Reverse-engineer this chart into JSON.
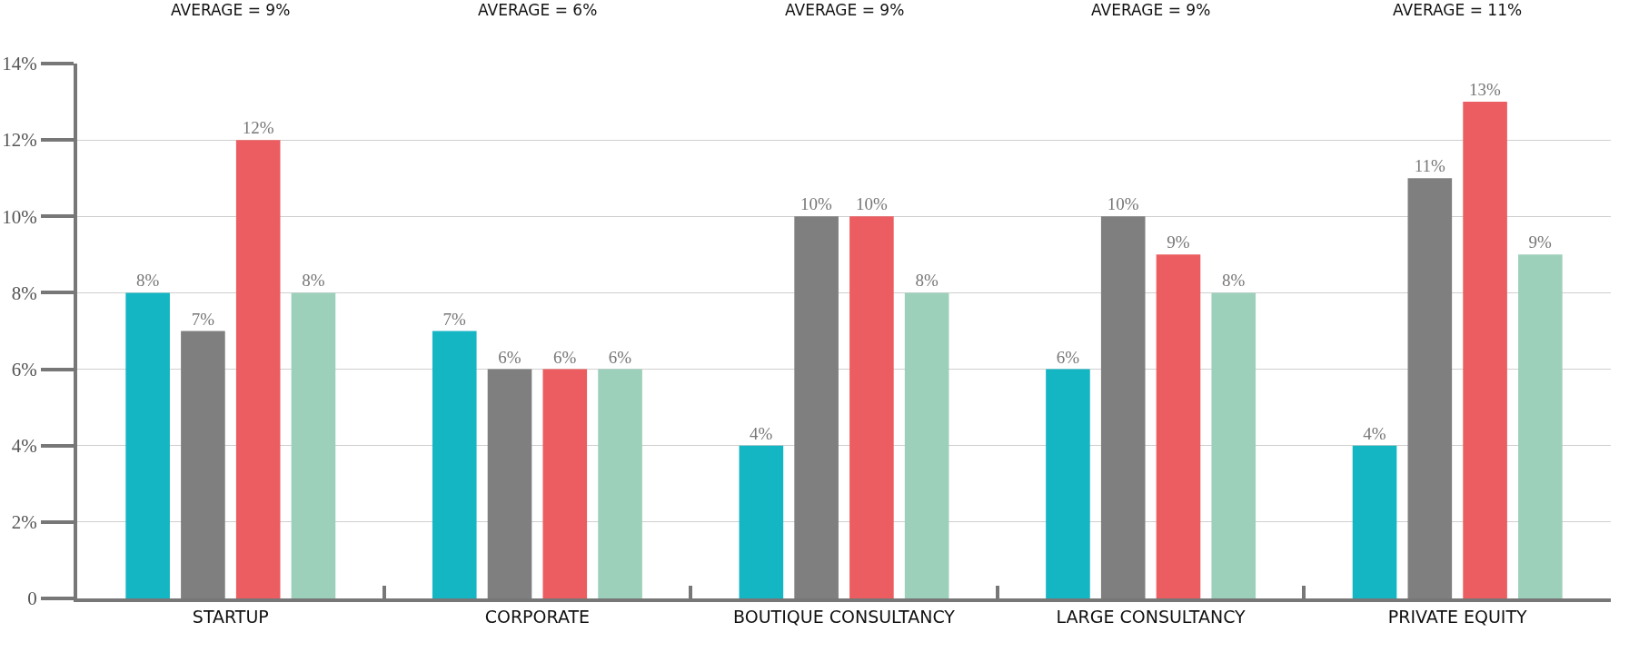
{
  "chart_data": {
    "type": "bar",
    "categories": [
      "STARTUP",
      "CORPORATE",
      "BOUTIQUE CONSULTANCY",
      "LARGE CONSULTANCY",
      "PRIVATE EQUITY"
    ],
    "series": [
      {
        "color": "#14b6c4",
        "values": [
          8,
          7,
          4,
          6,
          4
        ],
        "value_labels": [
          "8%",
          "7%",
          "4%",
          "6%",
          "4%"
        ]
      },
      {
        "color": "#7f7f80",
        "values": [
          7,
          6,
          10,
          10,
          11
        ],
        "value_labels": [
          "7%",
          "6%",
          "10%",
          "10%",
          "11%"
        ]
      },
      {
        "color": "#eb5d60",
        "values": [
          12,
          6,
          10,
          9,
          13
        ],
        "value_labels": [
          "12%",
          "6%",
          "10%",
          "9%",
          "13%"
        ]
      },
      {
        "color": "#9dd0bb",
        "values": [
          8,
          6,
          8,
          8,
          9
        ],
        "value_labels": [
          "8%",
          "6%",
          "8%",
          "8%",
          "9%"
        ]
      }
    ],
    "annotations": [
      "AVERAGE = 9%",
      "AVERAGE = 6%",
      "AVERAGE = 9%",
      "AVERAGE = 9%",
      "AVERAGE = 11%"
    ],
    "ylim": [
      0,
      14
    ],
    "yticks": [
      0,
      {
        "value": 2,
        "label": "2%"
      },
      {
        "value": 4,
        "label": "4%"
      },
      {
        "value": 6,
        "label": "6%"
      },
      {
        "value": 8,
        "label": "8%"
      },
      {
        "value": 10,
        "label": "10%"
      },
      {
        "value": 12,
        "label": "12%"
      },
      {
        "value": 14,
        "label": "14%"
      }
    ],
    "grid": "y"
  }
}
